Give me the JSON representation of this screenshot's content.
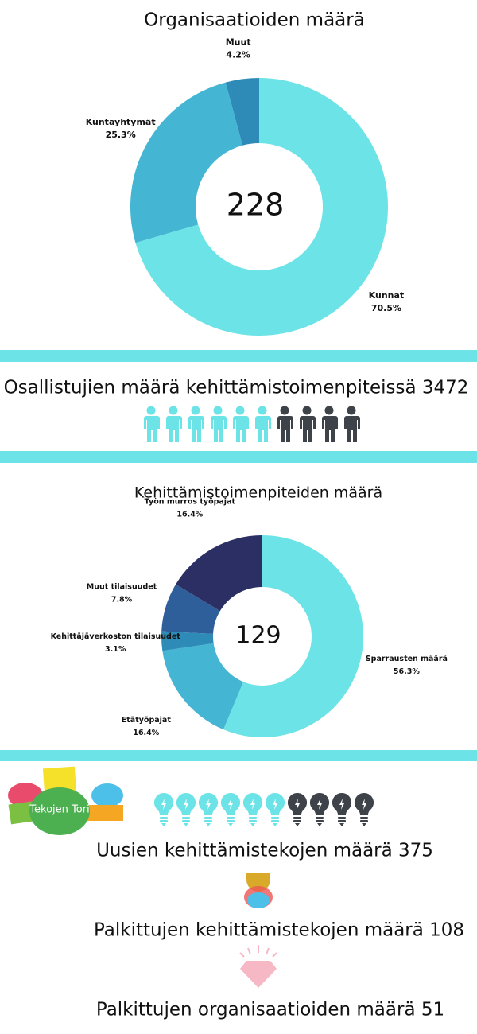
{
  "chart_data": [
    {
      "type": "donut",
      "title": "Organisaatioiden määrä",
      "center_value": 228,
      "categories": [
        "Kunnat",
        "Kuntayhtymät",
        "Muut"
      ],
      "values": [
        70.5,
        25.3,
        4.2
      ],
      "value_labels": [
        "70.5%",
        "25.3%",
        "4.2%"
      ],
      "colors": [
        "#6ce3e6",
        "#44b5d3",
        "#2e8bb8"
      ]
    },
    {
      "type": "donut",
      "title": "Kehittämistoimenpiteiden määrä",
      "center_value": 129,
      "categories": [
        "Sparrausten määrä",
        "Etätyöpajat",
        "Kehittäjäverkoston tilaisuudet",
        "Muut tilaisuudet",
        "Työn murros työpajat"
      ],
      "values": [
        56.3,
        16.4,
        3.1,
        7.8,
        16.4
      ],
      "value_labels": [
        "56.3%",
        "16.4%",
        "3.1%",
        "7.8%",
        "16.4%"
      ],
      "colors": [
        "#6ce3e6",
        "#44b5d3",
        "#2e8bb8",
        "#2f5f9a",
        "#2b2f63"
      ]
    }
  ],
  "participants": "Osallistujien määrä kehittämistoimenpiteissä 3472",
  "logo": "Tekojen Tori",
  "new_deeds": "Uusien kehittämistekojen määrä  375",
  "awarded_deeds": "Palkittujen kehittämistekojen määrä 108",
  "awarded_orgs": "Palkittujen organisaatioiden määrä 51"
}
